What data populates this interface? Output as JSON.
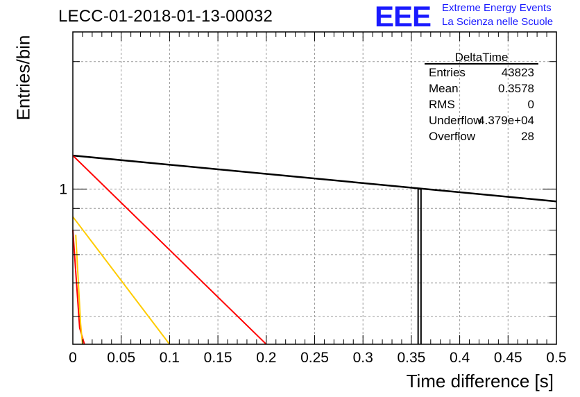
{
  "header": {
    "title": "LECC-01-2018-01-13-00032",
    "logo_mark": "EEE",
    "logo_line1": "Extreme Energy Events",
    "logo_line2": "La Scienza nelle Scuole",
    "logo_color": "#1a1aff"
  },
  "chart_data": {
    "type": "line",
    "xlabel": "Time difference [s]",
    "ylabel": "Entries/bin",
    "xlim": [
      0,
      0.5
    ],
    "ylim": [
      0.43,
      2.35
    ],
    "yscale": "log",
    "grid": true,
    "x_ticks": [
      "0",
      "0.05",
      "0.1",
      "0.15",
      "0.2",
      "0.25",
      "0.3",
      "0.35",
      "0.4",
      "0.45",
      "0.5"
    ],
    "y_tick_labels": [
      {
        "value": 1,
        "label": "1"
      }
    ],
    "series": [
      {
        "color": "#000000",
        "x": [
          0,
          0.5
        ],
        "y": [
          1.2,
          0.935
        ]
      },
      {
        "color": "#ff0000",
        "x": [
          0,
          0.2
        ],
        "y": [
          1.2,
          0.43
        ]
      },
      {
        "color": "#ffcc00",
        "x": [
          0,
          0.1
        ],
        "y": [
          0.86,
          0.43
        ]
      },
      {
        "color": "#ff0000",
        "x": [
          0,
          0.007,
          0.012
        ],
        "y": [
          0.8,
          0.47,
          0.43
        ]
      },
      {
        "color": "#ffcc00",
        "x": [
          0.003,
          0.008,
          0.01
        ],
        "y": [
          0.78,
          0.48,
          0.43
        ]
      }
    ],
    "histogram_bar": {
      "x_range": [
        0.357,
        0.36
      ],
      "y": 1.0
    },
    "stats_box": {
      "title": "DeltaTime",
      "rows": [
        {
          "label": "Entries",
          "value": "43823"
        },
        {
          "label": "Mean",
          "value": "0.3578"
        },
        {
          "label": "RMS",
          "value": "0"
        },
        {
          "label": "Underflow",
          "value": "4.379e+04"
        },
        {
          "label": "Overflow",
          "value": "28"
        }
      ]
    }
  }
}
